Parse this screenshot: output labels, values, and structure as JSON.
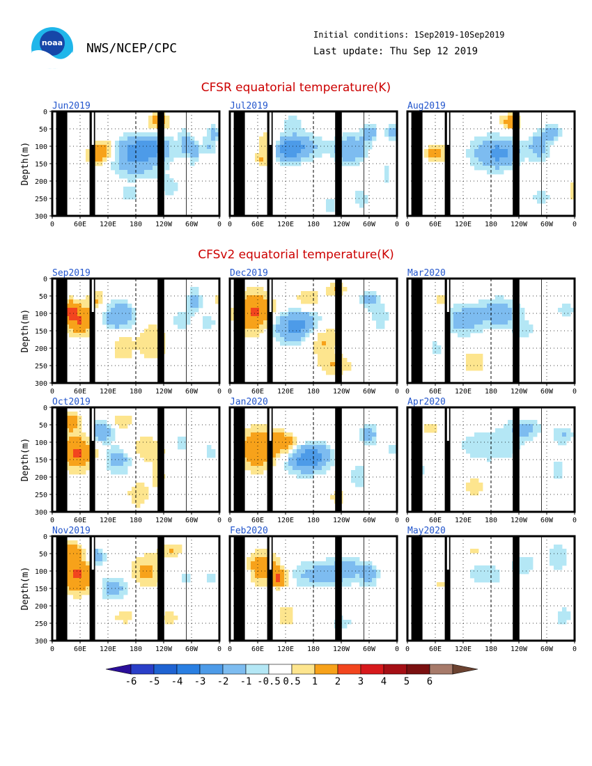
{
  "header": {
    "logo_text": "noaa",
    "org": "NWS/NCEP/CPC",
    "initial_conditions": "Initial conditions: 1Sep2019-10Sep2019",
    "last_update": "Last update: Thu Sep 12 2019"
  },
  "sections": {
    "cfsr_title": "CFSR equatorial temperature(K)",
    "cfsv2_title": "CFSv2 equatorial temperature(K)"
  },
  "colors": {
    "land": "#000000",
    "dashed_date_line": "#000000",
    "panel_title": "#2255cc",
    "section_title": "#cc0000"
  },
  "chart_data": {
    "type": "heatmap",
    "ylabel": "Depth(m)",
    "y_ticks": [
      "0",
      "50",
      "100",
      "150",
      "200",
      "250",
      "300"
    ],
    "x_ticks": [
      "0",
      "60E",
      "120E",
      "180",
      "120W",
      "60W",
      "0"
    ],
    "ylim": [
      300,
      0
    ],
    "grid": "dotted",
    "panels": [
      {
        "title": "Jun2019",
        "set": "CFSR",
        "row": 0,
        "col": 0,
        "blobs": [
          [
            95,
            110,
            20,
            30,
            1.5
          ],
          [
            80,
            130,
            25,
            35,
            1.0
          ],
          [
            150,
            130,
            50,
            55,
            -2.0
          ],
          [
            175,
            100,
            40,
            35,
            -1.5
          ],
          [
            190,
            30,
            22,
            25,
            1.5
          ],
          [
            140,
            240,
            20,
            30,
            -0.7
          ],
          [
            210,
            220,
            20,
            40,
            -0.7
          ],
          [
            240,
            90,
            12,
            35,
            -1.5
          ],
          [
            280,
            100,
            15,
            30,
            -1.0
          ],
          [
            290,
            60,
            10,
            20,
            -1.5
          ],
          [
            255,
            120,
            8,
            30,
            -1.5
          ]
        ]
      },
      {
        "title": "Jul2019",
        "set": "CFSR",
        "row": 0,
        "col": 1,
        "blobs": [
          [
            100,
            110,
            28,
            35,
            -2.2
          ],
          [
            130,
            100,
            35,
            40,
            -1.5
          ],
          [
            70,
            95,
            20,
            35,
            1.5
          ],
          [
            60,
            140,
            15,
            20,
            1.0
          ],
          [
            110,
            30,
            20,
            25,
            -0.7
          ],
          [
            215,
            110,
            30,
            40,
            -2.0
          ],
          [
            250,
            60,
            15,
            25,
            -1.5
          ],
          [
            180,
            270,
            15,
            30,
            -0.7
          ],
          [
            235,
            250,
            20,
            40,
            -0.7
          ],
          [
            290,
            60,
            12,
            20,
            -1.5
          ],
          [
            280,
            180,
            10,
            40,
            -0.7
          ]
        ]
      },
      {
        "title": "Aug2019",
        "set": "CFSR",
        "row": 0,
        "col": 2,
        "blobs": [
          [
            50,
            120,
            20,
            30,
            1.3
          ],
          [
            150,
            120,
            40,
            50,
            -1.5
          ],
          [
            185,
            30,
            20,
            25,
            1.5
          ],
          [
            175,
            120,
            30,
            40,
            -1.2
          ],
          [
            235,
            100,
            20,
            40,
            -1.5
          ],
          [
            260,
            60,
            15,
            25,
            -1.5
          ],
          [
            240,
            250,
            20,
            30,
            -0.7
          ],
          [
            300,
            230,
            15,
            40,
            0.7
          ],
          [
            20,
            60,
            10,
            20,
            -0.7
          ]
        ]
      },
      {
        "title": "Sep2019",
        "set": "CFSv2",
        "row": 1,
        "col": 0,
        "blobs": [
          [
            50,
            120,
            28,
            45,
            2.0
          ],
          [
            30,
            90,
            15,
            30,
            1.5
          ],
          [
            120,
            110,
            28,
            45,
            -2.0
          ],
          [
            125,
            190,
            20,
            50,
            1.0
          ],
          [
            180,
            180,
            30,
            60,
            1.0
          ],
          [
            230,
            120,
            30,
            40,
            -0.7
          ],
          [
            255,
            60,
            12,
            30,
            -1.5
          ],
          [
            280,
            130,
            15,
            30,
            -0.7
          ],
          [
            298,
            60,
            10,
            20,
            1.0
          ],
          [
            80,
            60,
            20,
            25,
            1.0
          ]
        ]
      },
      {
        "title": "Dec2019",
        "set": "CFSv2",
        "row": 1,
        "col": 1,
        "blobs": [
          [
            45,
            100,
            35,
            60,
            2.2
          ],
          [
            110,
            140,
            40,
            45,
            -2.0
          ],
          [
            140,
            130,
            30,
            40,
            -1.2
          ],
          [
            165,
            170,
            30,
            50,
            1.3
          ],
          [
            140,
            60,
            25,
            30,
            1.0
          ],
          [
            250,
            60,
            15,
            25,
            -1.5
          ],
          [
            270,
            110,
            15,
            40,
            -1.0
          ],
          [
            190,
            30,
            20,
            20,
            1.0
          ],
          [
            190,
            250,
            30,
            30,
            1.0
          ]
        ]
      },
      {
        "title": "Mar2020",
        "set": "CFSv2",
        "row": 1,
        "col": 2,
        "blobs": [
          [
            100,
            120,
            30,
            45,
            -1.5
          ],
          [
            165,
            100,
            40,
            45,
            -1.5
          ],
          [
            120,
            240,
            30,
            50,
            0.7
          ],
          [
            60,
            60,
            15,
            20,
            0.7
          ],
          [
            210,
            150,
            20,
            30,
            -0.7
          ],
          [
            285,
            90,
            20,
            30,
            -0.8
          ],
          [
            50,
            200,
            15,
            30,
            -0.7
          ]
        ]
      },
      {
        "title": "Oct2019",
        "set": "CFSv2",
        "row": 2,
        "col": 0,
        "blobs": [
          [
            45,
            130,
            30,
            50,
            2.2
          ],
          [
            30,
            40,
            20,
            30,
            1.5
          ],
          [
            90,
            70,
            20,
            30,
            -2.0
          ],
          [
            120,
            150,
            25,
            40,
            -1.5
          ],
          [
            125,
            40,
            25,
            20,
            1.0
          ],
          [
            170,
            120,
            40,
            40,
            1.0
          ],
          [
            155,
            250,
            20,
            40,
            1.0
          ],
          [
            230,
            100,
            25,
            40,
            -0.7
          ],
          [
            285,
            130,
            15,
            30,
            -0.7
          ],
          [
            190,
            200,
            15,
            40,
            0.7
          ]
        ]
      },
      {
        "title": "Jan2020",
        "set": "CFSv2",
        "row": 2,
        "col": 1,
        "blobs": [
          [
            50,
            120,
            40,
            60,
            1.8
          ],
          [
            100,
            100,
            25,
            40,
            1.5
          ],
          [
            130,
            150,
            35,
            40,
            -2.0
          ],
          [
            155,
            140,
            30,
            40,
            -1.5
          ],
          [
            120,
            60,
            30,
            25,
            -0.7
          ],
          [
            250,
            80,
            15,
            30,
            -1.5
          ],
          [
            230,
            200,
            20,
            60,
            -0.7
          ],
          [
            195,
            260,
            20,
            30,
            0.7
          ],
          [
            300,
            120,
            15,
            20,
            -1.0
          ]
        ]
      },
      {
        "title": "Apr2020",
        "set": "CFSv2",
        "row": 2,
        "col": 2,
        "blobs": [
          [
            150,
            110,
            60,
            50,
            -1.0
          ],
          [
            210,
            60,
            30,
            30,
            -1.2
          ],
          [
            280,
            80,
            20,
            30,
            -1.0
          ],
          [
            120,
            230,
            25,
            40,
            0.7
          ],
          [
            40,
            60,
            20,
            30,
            0.7
          ],
          [
            270,
            180,
            15,
            40,
            -0.7
          ],
          [
            20,
            180,
            12,
            40,
            -0.7
          ],
          [
            170,
            170,
            15,
            20,
            0.6
          ]
        ]
      },
      {
        "title": "Nov2019",
        "set": "CFSv2",
        "row": 3,
        "col": 0,
        "blobs": [
          [
            45,
            110,
            28,
            55,
            2.2
          ],
          [
            30,
            40,
            20,
            30,
            1.5
          ],
          [
            110,
            150,
            25,
            35,
            -1.5
          ],
          [
            80,
            60,
            15,
            25,
            -2.0
          ],
          [
            170,
            100,
            30,
            50,
            1.2
          ],
          [
            130,
            230,
            25,
            30,
            0.7
          ],
          [
            210,
            230,
            20,
            30,
            0.7
          ],
          [
            215,
            40,
            25,
            20,
            1.0
          ],
          [
            285,
            120,
            15,
            30,
            -0.7
          ],
          [
            240,
            120,
            20,
            30,
            -0.7
          ]
        ]
      },
      {
        "title": "Feb2020",
        "set": "CFSv2",
        "row": 3,
        "col": 1,
        "blobs": [
          [
            60,
            90,
            35,
            50,
            1.5
          ],
          [
            90,
            120,
            15,
            25,
            2.0
          ],
          [
            160,
            110,
            60,
            40,
            -1.3
          ],
          [
            210,
            90,
            30,
            35,
            -1.0
          ],
          [
            100,
            230,
            20,
            40,
            0.8
          ],
          [
            250,
            110,
            15,
            30,
            -1.5
          ],
          [
            25,
            120,
            12,
            40,
            -0.7
          ],
          [
            200,
            250,
            25,
            30,
            -0.7
          ]
        ]
      },
      {
        "title": "May2020",
        "set": "CFSv2",
        "row": 3,
        "col": 2,
        "blobs": [
          [
            140,
            110,
            40,
            40,
            -0.8
          ],
          [
            210,
            80,
            25,
            35,
            -0.8
          ],
          [
            270,
            60,
            20,
            40,
            -1.0
          ],
          [
            60,
            140,
            15,
            20,
            0.6
          ],
          [
            120,
            40,
            15,
            20,
            0.6
          ],
          [
            280,
            230,
            20,
            40,
            -0.7
          ],
          [
            20,
            160,
            10,
            40,
            -0.7
          ]
        ]
      }
    ],
    "colorbar": {
      "labels": [
        "-6",
        "-5",
        "-4",
        "-3",
        "-2",
        "-1",
        "-0.5",
        "0.5",
        "1",
        "2",
        "3",
        "4",
        "5",
        "6"
      ],
      "colors": [
        "#2b0f9a",
        "#2a3fc8",
        "#1f63d2",
        "#2a7fe2",
        "#4d9be8",
        "#7dbcf0",
        "#b4e7f5",
        "#ffffff",
        "#fde58e",
        "#f7a21a",
        "#f2451e",
        "#d7191c",
        "#a50f15",
        "#7a1010",
        "#a77a6a",
        "#6b4230"
      ]
    }
  }
}
